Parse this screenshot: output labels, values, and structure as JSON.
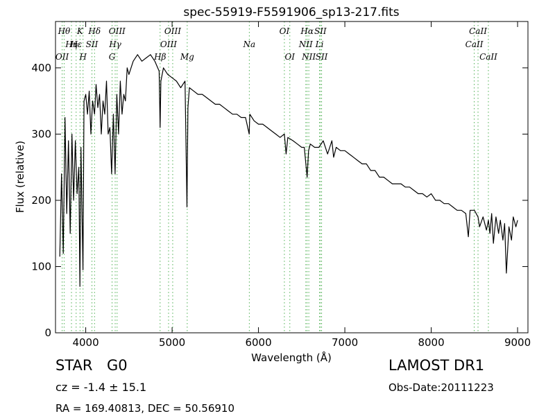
{
  "chart_data": {
    "type": "line",
    "title": "spec-55919-F5591906_sp13-217.fits",
    "xlabel": "Wavelength (Å)",
    "ylabel": "Flux (relative)",
    "xlim": [
      3650,
      9120
    ],
    "ylim": [
      0,
      470
    ],
    "xticks": [
      4000,
      5000,
      6000,
      7000,
      8000,
      9000
    ],
    "yticks": [
      0,
      100,
      200,
      300,
      400
    ],
    "grid": false,
    "series": [
      {
        "color": "#000000",
        "x": [
          3700,
          3720,
          3740,
          3760,
          3780,
          3800,
          3820,
          3840,
          3860,
          3880,
          3900,
          3920,
          3933,
          3945,
          3968,
          3980,
          4000,
          4020,
          4040,
          4060,
          4080,
          4102,
          4120,
          4140,
          4160,
          4180,
          4200,
          4220,
          4240,
          4260,
          4280,
          4300,
          4320,
          4340,
          4360,
          4380,
          4400,
          4420,
          4440,
          4460,
          4480,
          4500,
          4550,
          4600,
          4650,
          4700,
          4750,
          4800,
          4850,
          4861,
          4870,
          4900,
          4950,
          5000,
          5050,
          5100,
          5150,
          5172,
          5183,
          5200,
          5250,
          5300,
          5350,
          5400,
          5450,
          5500,
          5550,
          5600,
          5650,
          5700,
          5750,
          5800,
          5850,
          5893,
          5900,
          5950,
          6000,
          6050,
          6100,
          6150,
          6200,
          6250,
          6300,
          6320,
          6340,
          6400,
          6450,
          6500,
          6530,
          6563,
          6580,
          6600,
          6650,
          6700,
          6750,
          6800,
          6850,
          6870,
          6900,
          6950,
          7000,
          7050,
          7100,
          7150,
          7200,
          7250,
          7300,
          7350,
          7400,
          7450,
          7500,
          7550,
          7600,
          7650,
          7700,
          7750,
          7800,
          7850,
          7900,
          7950,
          8000,
          8050,
          8100,
          8150,
          8200,
          8250,
          8300,
          8350,
          8400,
          8430,
          8450,
          8500,
          8542,
          8560,
          8600,
          8640,
          8662,
          8680,
          8700,
          8720,
          8750,
          8780,
          8800,
          8830,
          8850,
          8870,
          8900,
          8930,
          8950,
          8980,
          9000
        ],
        "y": [
          115,
          240,
          120,
          325,
          180,
          290,
          150,
          300,
          200,
          290,
          210,
          250,
          70,
          280,
          95,
          350,
          360,
          330,
          365,
          300,
          350,
          330,
          375,
          340,
          360,
          300,
          350,
          330,
          380,
          300,
          310,
          240,
          330,
          240,
          360,
          300,
          380,
          330,
          360,
          350,
          400,
          390,
          410,
          420,
          410,
          415,
          420,
          410,
          395,
          310,
          380,
          400,
          390,
          385,
          380,
          370,
          380,
          190,
          340,
          370,
          365,
          360,
          360,
          355,
          350,
          345,
          345,
          340,
          335,
          330,
          330,
          325,
          325,
          300,
          330,
          320,
          315,
          315,
          310,
          305,
          300,
          295,
          300,
          270,
          295,
          290,
          285,
          280,
          280,
          235,
          275,
          285,
          280,
          280,
          290,
          270,
          290,
          265,
          280,
          275,
          275,
          270,
          265,
          260,
          255,
          255,
          245,
          245,
          235,
          235,
          230,
          225,
          225,
          225,
          220,
          220,
          215,
          210,
          210,
          205,
          210,
          200,
          200,
          195,
          195,
          190,
          185,
          185,
          180,
          145,
          185,
          185,
          175,
          160,
          175,
          155,
          170,
          150,
          180,
          135,
          175,
          150,
          170,
          140,
          165,
          90,
          160,
          140,
          175,
          160,
          170
        ]
      }
    ],
    "lines": [
      {
        "name": "OII",
        "x": 3727,
        "row": 3
      },
      {
        "name": "Hθ",
        "x": 3750,
        "row": 1
      },
      {
        "name": "Hη",
        "x": 3835,
        "row": 2
      },
      {
        "name": "Hε",
        "x": 3889,
        "row": 2
      },
      {
        "name": "K",
        "x": 3934,
        "row": 1
      },
      {
        "name": "H",
        "x": 3969,
        "row": 3
      },
      {
        "name": "SII",
        "x": 4072,
        "row": 2
      },
      {
        "name": "Hδ",
        "x": 4102,
        "row": 1
      },
      {
        "name": "G",
        "x": 4305,
        "row": 3
      },
      {
        "name": "Hγ",
        "x": 4341,
        "row": 2
      },
      {
        "name": "OIII",
        "x": 4363,
        "row": 1
      },
      {
        "name": "Hβ",
        "x": 4861,
        "row": 3
      },
      {
        "name": "OIII",
        "x": 4959,
        "row": 2
      },
      {
        "name": "OIII",
        "x": 5007,
        "row": 1
      },
      {
        "name": "Mg",
        "x": 5175,
        "row": 3
      },
      {
        "name": "Na",
        "x": 5894,
        "row": 2
      },
      {
        "name": "OI",
        "x": 6300,
        "row": 1
      },
      {
        "name": "OI",
        "x": 6363,
        "row": 3
      },
      {
        "name": "NII",
        "x": 6548,
        "row": 2
      },
      {
        "name": "Hα",
        "x": 6563,
        "row": 1
      },
      {
        "name": "NII",
        "x": 6583,
        "row": 3
      },
      {
        "name": "Li",
        "x": 6707,
        "row": 2
      },
      {
        "name": "SII",
        "x": 6717,
        "row": 1
      },
      {
        "name": "SII",
        "x": 6731,
        "row": 3
      },
      {
        "name": "CaII",
        "x": 8498,
        "row": 2
      },
      {
        "name": "CaII",
        "x": 8542,
        "row": 1
      },
      {
        "name": "CaII",
        "x": 8662,
        "row": 3
      }
    ]
  },
  "info": {
    "class": "STAR",
    "subclass": "G0",
    "survey": "LAMOST DR1",
    "cz": "cz = -1.4  ± 15.1",
    "obs_date": "Obs-Date:20111223",
    "coords": "RA = 169.40813, DEC = 50.56910"
  },
  "colors": {
    "spectrum": "#000000",
    "line_markers": "#4caf50",
    "axes": "#000000"
  }
}
